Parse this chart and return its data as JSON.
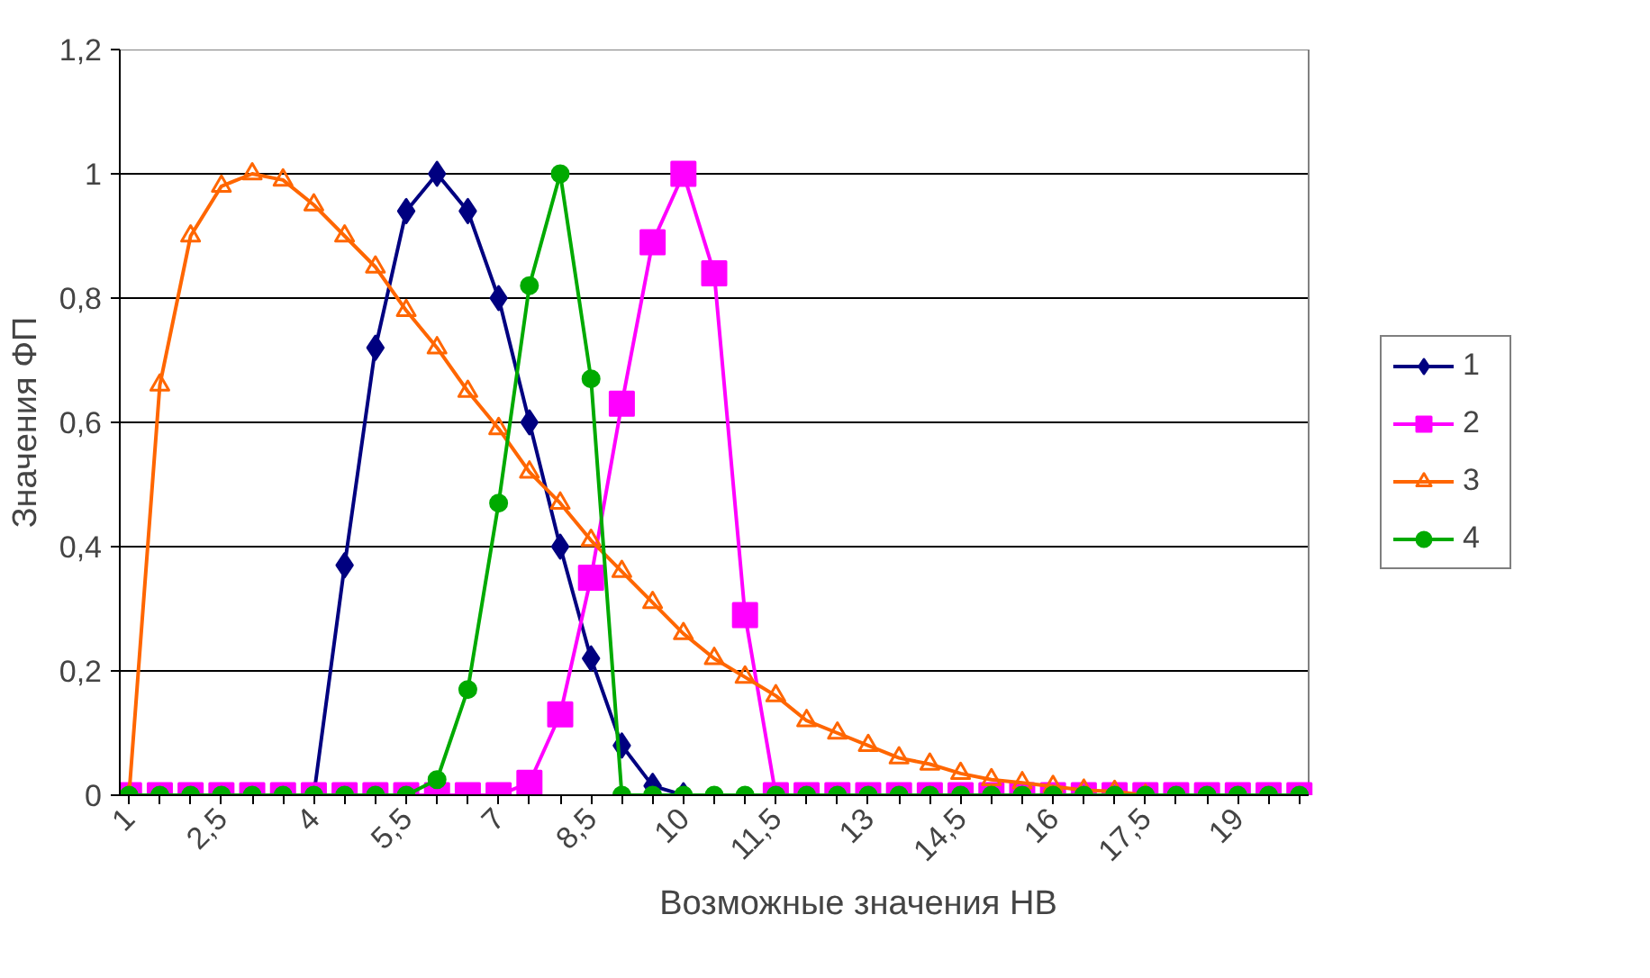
{
  "chart_data": {
    "type": "line",
    "xlabel": "Возможные значения НВ",
    "ylabel": "Значения ФП",
    "categories": [
      "1",
      null,
      null,
      "2,5",
      null,
      null,
      "4",
      null,
      null,
      "5,5",
      null,
      null,
      "7",
      null,
      null,
      "8,5",
      null,
      null,
      "10",
      null,
      null,
      "11,5",
      null,
      null,
      "13",
      null,
      null,
      "14,5",
      null,
      null,
      "16",
      null,
      null,
      "17,5",
      null,
      null,
      "19",
      null,
      null
    ],
    "ylim": [
      0,
      1.2
    ],
    "yticks": [
      {
        "value": 0,
        "label": "0"
      },
      {
        "value": 0.2,
        "label": "0,2"
      },
      {
        "value": 0.4,
        "label": "0,4"
      },
      {
        "value": 0.6,
        "label": "0,6"
      },
      {
        "value": 0.8,
        "label": "0,8"
      },
      {
        "value": 1,
        "label": "1"
      },
      {
        "value": 1.2,
        "label": "1,2"
      }
    ],
    "grid": "y",
    "legend": "right",
    "series": [
      {
        "name": "1",
        "color": "#000080",
        "marker": "diamond",
        "values": [
          null,
          null,
          null,
          null,
          null,
          null,
          0,
          0.37,
          0.72,
          0.94,
          1,
          0.94,
          0.8,
          0.6,
          0.4,
          0.22,
          0.08,
          0.015,
          0,
          null,
          null,
          null,
          null,
          null,
          null,
          null,
          null,
          null,
          null,
          null,
          null,
          null,
          null,
          null,
          null,
          null,
          null,
          null,
          null
        ]
      },
      {
        "name": "2",
        "color": "#ff00ff",
        "marker": "square",
        "values": [
          0,
          0,
          0,
          0,
          0,
          0,
          0,
          0,
          0,
          0,
          0,
          0,
          0,
          0.02,
          0.13,
          0.35,
          0.63,
          0.89,
          1,
          0.84,
          0.29,
          0,
          0,
          0,
          0,
          0,
          0,
          0,
          0,
          0,
          0,
          0,
          0,
          0,
          0,
          0,
          0,
          0,
          0
        ]
      },
      {
        "name": "3",
        "color": "#ff6600",
        "marker": "triangle",
        "values": [
          0,
          0.66,
          0.9,
          0.98,
          1,
          0.99,
          0.95,
          0.9,
          0.85,
          0.78,
          0.72,
          0.65,
          0.59,
          0.52,
          0.47,
          0.41,
          0.36,
          0.31,
          0.26,
          0.22,
          0.19,
          0.16,
          0.12,
          0.1,
          0.08,
          0.06,
          0.05,
          0.035,
          0.025,
          0.02,
          0.014,
          0.008,
          0.006,
          0,
          null,
          null,
          null,
          null,
          null
        ]
      },
      {
        "name": "4",
        "color": "#00aa00",
        "marker": "circle",
        "values": [
          0,
          0,
          0,
          0,
          0,
          0,
          0,
          0,
          0,
          0,
          0.025,
          0.17,
          0.47,
          0.82,
          1,
          0.67,
          0,
          0,
          0,
          0,
          0,
          0,
          0,
          0,
          0,
          0,
          0,
          0,
          0,
          0,
          0,
          0,
          0,
          0,
          0,
          0,
          0,
          0,
          0
        ]
      }
    ]
  }
}
